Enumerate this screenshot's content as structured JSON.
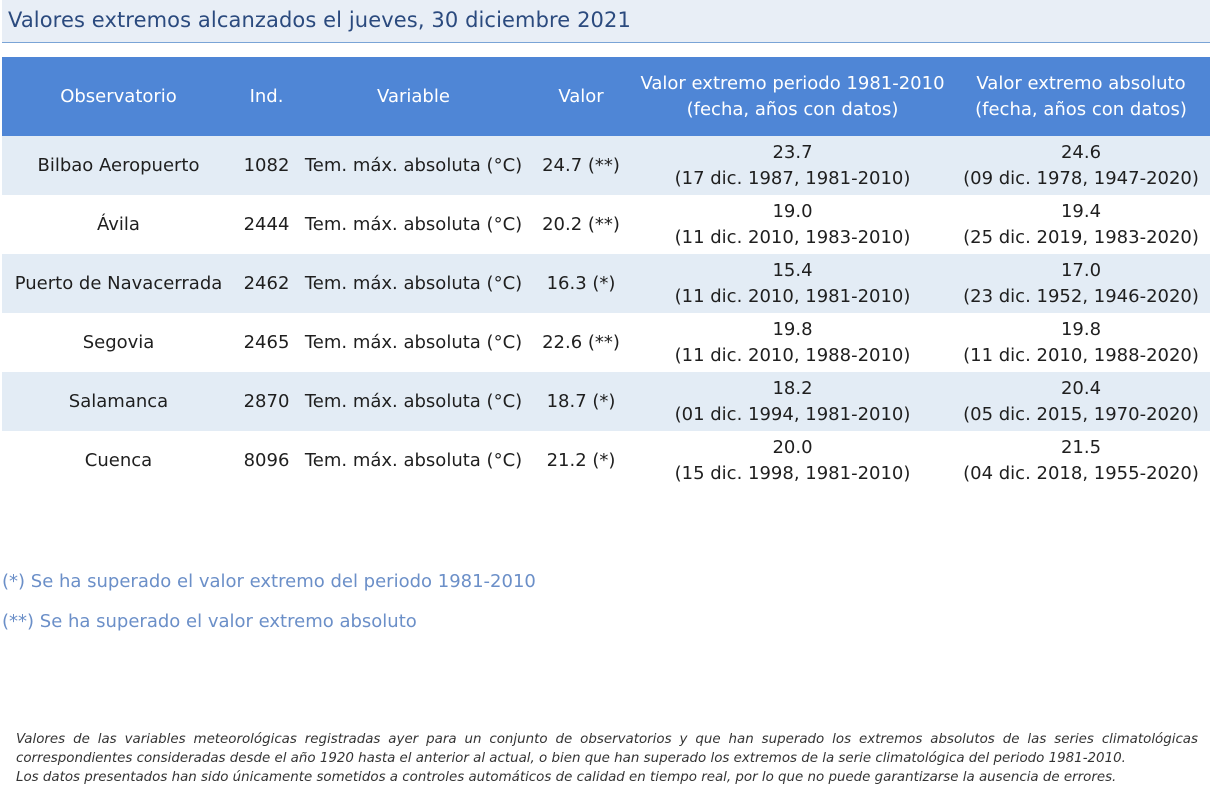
{
  "title": "Valores extremos alcanzados el jueves, 30 diciembre 2021",
  "table": {
    "headers": {
      "observatorio": "Observatorio",
      "ind": "Ind.",
      "variable": "Variable",
      "valor": "Valor",
      "periodo_line1": "Valor extremo periodo 1981-2010",
      "periodo_line2": "(fecha, años con datos)",
      "absoluto_line1": "Valor extremo absoluto",
      "absoluto_line2": "(fecha, años con datos)"
    },
    "rows": [
      {
        "observatorio": "Bilbao Aeropuerto",
        "ind": "1082",
        "variable": "Tem. máx. absoluta (°C)",
        "valor": "24.7 (**)",
        "periodo_valor": "23.7",
        "periodo_fecha": "(17 dic. 1987, 1981-2010)",
        "absoluto_valor": "24.6",
        "absoluto_fecha": "(09 dic. 1978, 1947-2020)"
      },
      {
        "observatorio": "Ávila",
        "ind": "2444",
        "variable": "Tem. máx. absoluta (°C)",
        "valor": "20.2 (**)",
        "periodo_valor": "19.0",
        "periodo_fecha": "(11 dic. 2010, 1983-2010)",
        "absoluto_valor": "19.4",
        "absoluto_fecha": "(25 dic. 2019, 1983-2020)"
      },
      {
        "observatorio": "Puerto de Navacerrada",
        "ind": "2462",
        "variable": "Tem. máx. absoluta (°C)",
        "valor": "16.3 (*)",
        "periodo_valor": "15.4",
        "periodo_fecha": "(11 dic. 2010, 1981-2010)",
        "absoluto_valor": "17.0",
        "absoluto_fecha": "(23 dic. 1952, 1946-2020)"
      },
      {
        "observatorio": "Segovia",
        "ind": "2465",
        "variable": "Tem. máx. absoluta (°C)",
        "valor": "22.6 (**)",
        "periodo_valor": "19.8",
        "periodo_fecha": "(11 dic. 2010, 1988-2010)",
        "absoluto_valor": "19.8",
        "absoluto_fecha": "(11 dic. 2010, 1988-2020)"
      },
      {
        "observatorio": "Salamanca",
        "ind": "2870",
        "variable": "Tem. máx. absoluta (°C)",
        "valor": "18.7 (*)",
        "periodo_valor": "18.2",
        "periodo_fecha": "(01 dic. 1994, 1981-2010)",
        "absoluto_valor": "20.4",
        "absoluto_fecha": "(05 dic. 2015, 1970-2020)"
      },
      {
        "observatorio": "Cuenca",
        "ind": "8096",
        "variable": "Tem. máx. absoluta (°C)",
        "valor": "21.2 (*)",
        "periodo_valor": "20.0",
        "periodo_fecha": "(15 dic. 1998, 1981-2010)",
        "absoluto_valor": "21.5",
        "absoluto_fecha": "(04 dic. 2018, 1955-2020)"
      }
    ]
  },
  "notes": {
    "single": "(*) Se ha superado el valor extremo del periodo 1981-2010",
    "double": "(**) Se ha superado el valor extremo absoluto"
  },
  "footer": {
    "paragraph1": "Valores de las variables meteorológicas registradas ayer para un conjunto de observatorios y que han superado los extremos absolutos de las series climatológicas correspondientes consideradas desde el año 1920 hasta el anterior al actual, o bien que han superado los extremos de la serie climatológica del periodo 1981-2010.",
    "paragraph2": "Los datos presentados han sido únicamente sometidos a controles automáticos de calidad en tiempo real, por lo que no puede garantizarse la ausencia de errores."
  },
  "colors": {
    "header_bg": "#4f86d6",
    "row_alt_bg": "#e3ecf5",
    "title_bg": "#e8eef6",
    "title_text": "#2b4a7e",
    "notes_text": "#6b8fc8"
  }
}
